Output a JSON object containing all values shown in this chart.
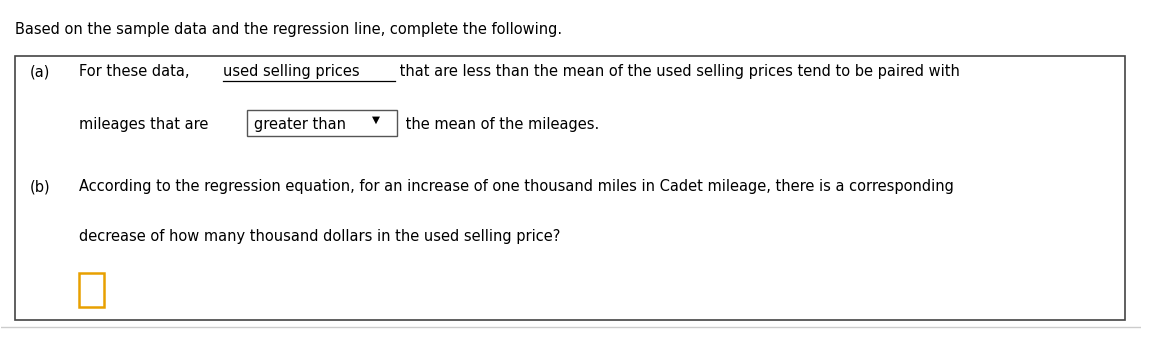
{
  "title": "Based on the sample data and the regression line, complete the following.",
  "part_a_label": "(a)",
  "part_a_prefix": "For these data, ",
  "part_a_underlined": "used selling prices",
  "part_a_suffix": " that are less than the mean of the used selling prices tend to be paired with",
  "part_a_line2_before": "mileages that are ",
  "part_a_dropdown_text": "greater than",
  "part_a_dropdown_arrow": "▼",
  "part_a_line2_after": " the mean of the mileages.",
  "part_b_label": "(b)",
  "part_b_line1": "According to the regression equation, for an increase of one thousand miles in Cadet mileage, there is a corresponding",
  "part_b_line2": "decrease of how many thousand dollars in the used selling price?",
  "input_box_color": "#e8a000",
  "background_color": "#ffffff",
  "box_border_color": "#444444",
  "text_color": "#000000",
  "font_size": 10.5,
  "dropdown_border_color": "#555555",
  "separator_color": "#cccccc"
}
